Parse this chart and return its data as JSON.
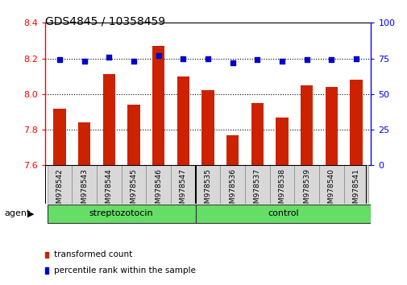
{
  "title": "GDS4845 / 10358459",
  "samples": [
    "GSM978542",
    "GSM978543",
    "GSM978544",
    "GSM978545",
    "GSM978546",
    "GSM978547",
    "GSM978535",
    "GSM978536",
    "GSM978537",
    "GSM978538",
    "GSM978539",
    "GSM978540",
    "GSM978541"
  ],
  "transformed_count": [
    7.92,
    7.84,
    8.11,
    7.94,
    8.27,
    8.1,
    8.02,
    7.77,
    7.95,
    7.87,
    8.05,
    8.04,
    8.08
  ],
  "percentile_rank": [
    74,
    73,
    76,
    73,
    77,
    75,
    75,
    72,
    74,
    73,
    74,
    74,
    75
  ],
  "bar_color": "#cc2200",
  "dot_color": "#0000cc",
  "ylim_left": [
    7.6,
    8.4
  ],
  "ylim_right": [
    0,
    100
  ],
  "yticks_left": [
    7.6,
    7.8,
    8.0,
    8.2,
    8.4
  ],
  "yticks_right": [
    0,
    25,
    50,
    75,
    100
  ],
  "groups": [
    {
      "label": "streptozotocin",
      "color": "#66dd66"
    },
    {
      "label": "control",
      "color": "#66dd66"
    }
  ],
  "group_divider": 6,
  "agent_label": "agent",
  "legend": [
    {
      "label": "transformed count",
      "color": "#cc2200"
    },
    {
      "label": "percentile rank within the sample",
      "color": "#0000cc"
    }
  ],
  "background_color": "#ffffff",
  "plot_bg_color": "#ffffff",
  "label_bg_color": "#d8d8d8",
  "grid_color": "#000000",
  "bar_width": 0.5,
  "base_value": 7.6
}
